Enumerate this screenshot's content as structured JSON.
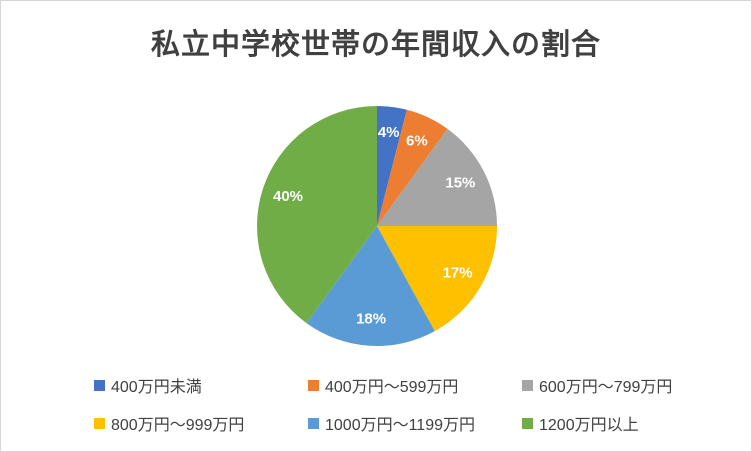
{
  "chart_data": {
    "type": "pie",
    "title": "私立中学校世帯の年間収入の割合",
    "categories": [
      "400万円未満",
      "400万円～599万円",
      "600万円～799万円",
      "800万円～999万円",
      "1000万円～1199万円",
      "1200万円以上"
    ],
    "values": [
      4,
      6,
      15,
      17,
      18,
      40
    ],
    "data_labels": [
      "4%",
      "6%",
      "15%",
      "17%",
      "18%",
      "40%"
    ],
    "unit": "%",
    "colors": [
      "#4472C4",
      "#ED7D31",
      "#A5A5A5",
      "#FFC000",
      "#5B9BD5",
      "#70AD47"
    ],
    "start_angle_deg": 0,
    "direction": "clockwise",
    "legend_position": "bottom",
    "label_color": "#ffffff",
    "title_color": "#404040",
    "legend_text_color": "#404040"
  }
}
